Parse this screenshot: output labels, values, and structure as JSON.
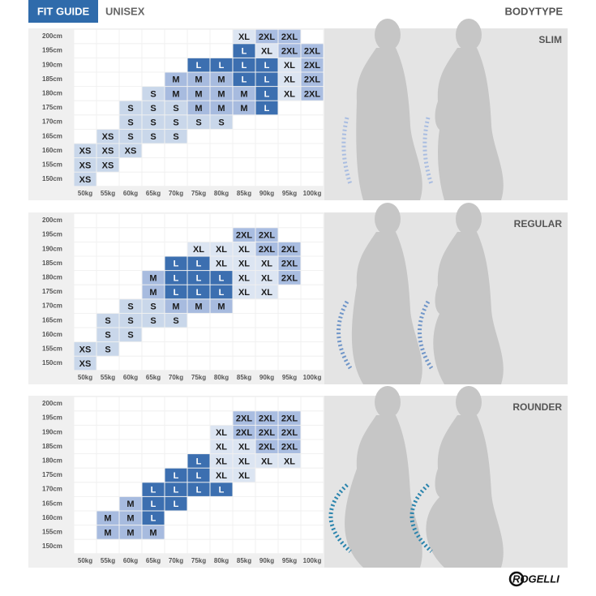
{
  "header": {
    "title": "FIT GUIDE",
    "subtitle": "UNISEX",
    "right_label": "BODYTYPE"
  },
  "heights": [
    "200cm",
    "195cm",
    "190cm",
    "185cm",
    "180cm",
    "175cm",
    "170cm",
    "165cm",
    "160cm",
    "155cm",
    "150cm"
  ],
  "weights": [
    "50kg",
    "55kg",
    "60kg",
    "65kg",
    "70kg",
    "75kg",
    "80kg",
    "85kg",
    "90kg",
    "95kg",
    "100kg"
  ],
  "size_colors": {
    "XS": [
      "#c9d7ea",
      "#1b1b1b"
    ],
    "S": [
      "#c9d7ea",
      "#1b1b1b"
    ],
    "M": [
      "#a7bbdf",
      "#1b1b1b"
    ],
    "L": [
      "#3c6fb0",
      "#ffffff"
    ],
    "XL": [
      "#dce5f2",
      "#1b1b1b"
    ],
    "2XL": [
      "#a9bde1",
      "#1b1b1b"
    ]
  },
  "panels": [
    {
      "bodytype": "SLIM",
      "grid": [
        [
          null,
          null,
          null,
          null,
          null,
          null,
          null,
          "XL",
          "2XL",
          "2XL",
          null
        ],
        [
          null,
          null,
          null,
          null,
          null,
          null,
          null,
          "L",
          "XL",
          "2XL",
          "2XL"
        ],
        [
          null,
          null,
          null,
          null,
          null,
          "L",
          "L",
          "L",
          "L",
          "XL",
          "2XL"
        ],
        [
          null,
          null,
          null,
          null,
          "M",
          "M",
          "M",
          "L",
          "L",
          "XL",
          "2XL"
        ],
        [
          null,
          null,
          null,
          "S",
          "M",
          "M",
          "M",
          "M",
          "L",
          "XL",
          "2XL"
        ],
        [
          null,
          null,
          "S",
          "S",
          "S",
          "M",
          "M",
          "M",
          "L",
          null,
          null
        ],
        [
          null,
          null,
          "S",
          "S",
          "S",
          "S",
          "S",
          null,
          null,
          null,
          null
        ],
        [
          null,
          "XS",
          "S",
          "S",
          "S",
          null,
          null,
          null,
          null,
          null,
          null
        ],
        [
          "XS",
          "XS",
          "XS",
          null,
          null,
          null,
          null,
          null,
          null,
          null,
          null
        ],
        [
          "XS",
          "XS",
          null,
          null,
          null,
          null,
          null,
          null,
          null,
          null,
          null
        ],
        [
          "XS",
          null,
          null,
          null,
          null,
          null,
          null,
          null,
          null,
          null,
          null
        ]
      ]
    },
    {
      "bodytype": "REGULAR",
      "grid": [
        [
          null,
          null,
          null,
          null,
          null,
          null,
          null,
          null,
          null,
          null,
          null
        ],
        [
          null,
          null,
          null,
          null,
          null,
          null,
          null,
          "2XL",
          "2XL",
          null,
          null
        ],
        [
          null,
          null,
          null,
          null,
          null,
          "XL",
          "XL",
          "XL",
          "2XL",
          "2XL",
          null
        ],
        [
          null,
          null,
          null,
          null,
          "L",
          "L",
          "XL",
          "XL",
          "XL",
          "2XL",
          null
        ],
        [
          null,
          null,
          null,
          "M",
          "L",
          "L",
          "L",
          "XL",
          "XL",
          "2XL",
          null
        ],
        [
          null,
          null,
          null,
          "M",
          "L",
          "L",
          "L",
          "XL",
          "XL",
          null,
          null
        ],
        [
          null,
          null,
          "S",
          "S",
          "M",
          "M",
          "M",
          null,
          null,
          null,
          null
        ],
        [
          null,
          "S",
          "S",
          "S",
          "S",
          null,
          null,
          null,
          null,
          null,
          null
        ],
        [
          null,
          "S",
          "S",
          null,
          null,
          null,
          null,
          null,
          null,
          null,
          null
        ],
        [
          "XS",
          "S",
          null,
          null,
          null,
          null,
          null,
          null,
          null,
          null,
          null
        ],
        [
          "XS",
          null,
          null,
          null,
          null,
          null,
          null,
          null,
          null,
          null,
          null
        ]
      ]
    },
    {
      "bodytype": "ROUNDER",
      "grid": [
        [
          null,
          null,
          null,
          null,
          null,
          null,
          null,
          null,
          null,
          null,
          null
        ],
        [
          null,
          null,
          null,
          null,
          null,
          null,
          null,
          "2XL",
          "2XL",
          "2XL",
          null
        ],
        [
          null,
          null,
          null,
          null,
          null,
          null,
          "XL",
          "2XL",
          "2XL",
          "2XL",
          null
        ],
        [
          null,
          null,
          null,
          null,
          null,
          null,
          "XL",
          "XL",
          "2XL",
          "2XL",
          null
        ],
        [
          null,
          null,
          null,
          null,
          null,
          "L",
          "XL",
          "XL",
          "XL",
          "XL",
          null
        ],
        [
          null,
          null,
          null,
          null,
          "L",
          "L",
          "XL",
          "XL",
          null,
          null,
          null
        ],
        [
          null,
          null,
          null,
          "L",
          "L",
          "L",
          "L",
          null,
          null,
          null,
          null
        ],
        [
          null,
          null,
          "M",
          "L",
          "L",
          null,
          null,
          null,
          null,
          null,
          null
        ],
        [
          null,
          "M",
          "M",
          "L",
          null,
          null,
          null,
          null,
          null,
          null,
          null
        ],
        [
          null,
          "M",
          "M",
          "M",
          null,
          null,
          null,
          null,
          null,
          null,
          null
        ],
        [
          null,
          null,
          null,
          null,
          null,
          null,
          null,
          null,
          null,
          null,
          null
        ]
      ]
    }
  ],
  "brand": "ROGELLI"
}
